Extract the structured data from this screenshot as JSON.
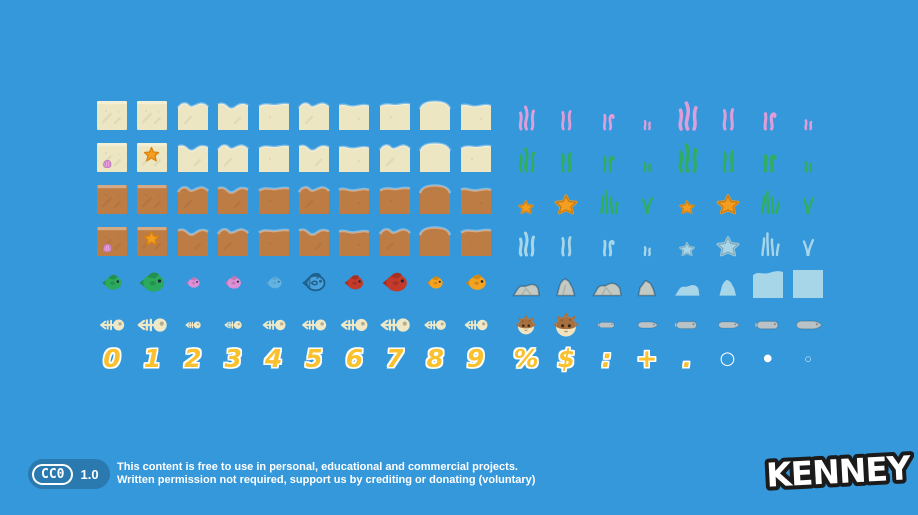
{
  "palette": {
    "background": "#3598DB",
    "sand": "#EDE6C2",
    "dirt": "#BE7C45",
    "seaweed_pink": "#DE9ED9",
    "seaweed_green": "#2FAF5D",
    "silhouette_blue": "#A7D6E9",
    "starfish_orange": "#F59D1E",
    "rock_gray": "#C3C9C3",
    "fish_green": "#2BA95C",
    "fish_pink": "#DE8FD6",
    "fish_blue_ghost": "#A8D8F0",
    "fish_blue_outline": "#1D5F8D",
    "fish_red": "#C33A2A",
    "fish_orange": "#F5A21F",
    "bone_cream": "#EFE8C6",
    "eel_gray": "#B9C2C6",
    "puffer_brown": "#A9703F",
    "glyph_yellow": "#F8C12D",
    "footer_pill_blue": "#2A7AB0",
    "text_white": "#FFFFFF"
  },
  "sprite_grid": {
    "left": {
      "rows": [
        [
          "sand-flat",
          "sand-flat",
          "sand-wave-a",
          "sand-wave-b",
          "sand-wave-c",
          "sand-wave-a",
          "sand-wave-d",
          "sand-wave-c",
          "sand-dome",
          "sand-wave-d"
        ],
        [
          "sand-shell",
          "sand-star",
          "sand-wave-b",
          "sand-wave-a",
          "sand-wave-c",
          "sand-wave-b",
          "sand-wave-d",
          "sand-wave-a",
          "sand-dome",
          "sand-wave-c"
        ],
        [
          "dirt-flat",
          "dirt-flat",
          "dirt-wave-a",
          "dirt-wave-b",
          "dirt-wave-c",
          "dirt-wave-a",
          "dirt-wave-d",
          "dirt-wave-c",
          "dirt-dome",
          "dirt-wave-d"
        ],
        [
          "dirt-shell",
          "dirt-star",
          "dirt-wave-b",
          "dirt-wave-a",
          "dirt-wave-c",
          "dirt-wave-b",
          "dirt-wave-d",
          "dirt-wave-a",
          "dirt-dome",
          "dirt-wave-c"
        ],
        [
          "fish-green-sm",
          "fish-green-lg",
          "fish-pink-sm",
          "fish-pink-lg",
          "fish-blue-ghost",
          "fish-blue-outline",
          "fish-red-sm",
          "fish-red-lg",
          "fish-orange-sm",
          "fish-orange-lg"
        ],
        [
          "fishbone-a",
          "fishbone-b",
          "fishbone-c",
          "fishbone-d",
          "fishbone-e",
          "fishbone-f",
          "fishbone-g",
          "fishbone-h",
          "fishbone-i",
          "fishbone-j"
        ]
      ]
    },
    "right": {
      "rows": [
        [
          "seaweed-pink-triple",
          "seaweed-pink-double",
          "seaweed-pink-curl",
          "seaweed-pink-small",
          "seaweed-pink-triple-lg",
          "seaweed-pink-double-lg",
          "seaweed-pink-curl-lg",
          "seaweed-pink-small-lg"
        ],
        [
          "seaweed-green-triple",
          "seaweed-green-double",
          "seaweed-green-curl",
          "seaweed-green-small",
          "seaweed-green-triple-lg",
          "seaweed-green-double-lg",
          "seaweed-green-curl-lg",
          "seaweed-green-small-lg"
        ],
        [
          "starfish-sm",
          "starfish-lg",
          "grass-tall",
          "grass-split",
          "starfish-sm",
          "starfish-lg",
          "grass-tall",
          "grass-split"
        ],
        [
          "sil-seaweed-triple",
          "sil-seaweed-double",
          "sil-seaweed-curl",
          "sil-seaweed-small",
          "sil-starfish-sm",
          "sil-starfish-lg",
          "sil-grass-tall",
          "sil-grass-split"
        ],
        [
          "rock-low",
          "rock-tall",
          "rock-wide",
          "rock-peak",
          "sil-rock-low",
          "sil-rock-tall",
          "water-wave-tile",
          "water-flat-tile"
        ],
        [
          "puffer-sm",
          "puffer-lg",
          "grayfish-a",
          "grayfish-b",
          "grayfish-c",
          "grayfish-d",
          "grayfish-e",
          "grayfish-f"
        ]
      ]
    }
  },
  "glyph_row": {
    "left": [
      {
        "ch": "0",
        "cls": "g-yellow",
        "name": "glyph-0"
      },
      {
        "ch": "1",
        "cls": "g-yellow",
        "name": "glyph-1"
      },
      {
        "ch": "2",
        "cls": "g-yellow",
        "name": "glyph-2"
      },
      {
        "ch": "3",
        "cls": "g-yellow",
        "name": "glyph-3"
      },
      {
        "ch": "4",
        "cls": "g-yellow",
        "name": "glyph-4"
      },
      {
        "ch": "5",
        "cls": "g-yellow",
        "name": "glyph-5"
      },
      {
        "ch": "6",
        "cls": "g-yellow",
        "name": "glyph-6"
      },
      {
        "ch": "7",
        "cls": "g-yellow",
        "name": "glyph-7"
      },
      {
        "ch": "8",
        "cls": "g-yellow",
        "name": "glyph-8"
      },
      {
        "ch": "9",
        "cls": "g-yellow",
        "name": "glyph-9"
      }
    ],
    "right": [
      {
        "ch": "%",
        "cls": "g-yellow",
        "name": "glyph-percent"
      },
      {
        "ch": "$",
        "cls": "g-yellow",
        "name": "glyph-dollar"
      },
      {
        "ch": ":",
        "cls": "g-yellow",
        "name": "glyph-colon"
      },
      {
        "ch": "+",
        "cls": "g-yellow",
        "name": "glyph-plus"
      },
      {
        "ch": ".",
        "cls": "g-yellow",
        "name": "glyph-period"
      },
      {
        "ch": "○",
        "cls": "g-white-md",
        "name": "glyph-circle-outline"
      },
      {
        "ch": "●",
        "cls": "g-white-sm",
        "name": "glyph-dot"
      },
      {
        "ch": "○",
        "cls": "g-white-xs",
        "name": "glyph-small-circle"
      }
    ]
  },
  "footer": {
    "badge": {
      "label": "CC0",
      "version": "1.0"
    },
    "license_line1": "This content is free to use in personal, educational and commercial projects.",
    "license_line2": "Written permission not required, support us by crediting or donating (voluntary)",
    "logo_text": "KENNEY"
  }
}
